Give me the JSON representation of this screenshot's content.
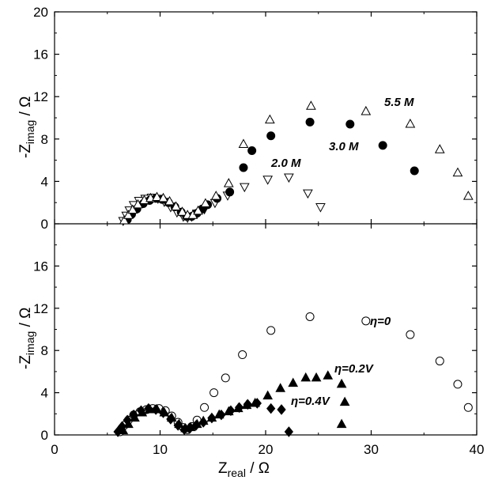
{
  "chart_data": [
    {
      "type": "scatter",
      "panel": "top",
      "ylabel": {
        "main": "-Z",
        "sub": "imag",
        "unit": " / Ω"
      },
      "xlim": [
        0,
        40
      ],
      "ylim": [
        0,
        20
      ],
      "yticks": [
        "0",
        "4",
        "8",
        "12",
        "16",
        "20"
      ],
      "series": [
        {
          "name": "2.0 M",
          "marker": "triangle-down-open",
          "x": [
            6.5,
            6.8,
            7.1,
            7.5,
            8.0,
            8.6,
            9.2,
            9.8,
            10.4,
            11.0,
            11.6,
            12.2,
            12.6,
            13.0,
            13.5,
            14.2,
            15.2,
            16.4,
            18.0,
            20.2,
            22.2,
            24.0,
            25.2
          ],
          "y": [
            0.3,
            0.8,
            1.3,
            1.8,
            2.2,
            2.4,
            2.5,
            2.4,
            2.1,
            1.6,
            1.1,
            0.7,
            0.6,
            0.7,
            1.0,
            1.4,
            2.0,
            2.7,
            3.5,
            4.2,
            4.4,
            2.9,
            1.6
          ]
        },
        {
          "name": "3.0 M",
          "marker": "circle-filled",
          "x": [
            6.9,
            7.3,
            7.8,
            8.4,
            9.0,
            9.6,
            10.2,
            10.8,
            11.4,
            12.0,
            12.5,
            13.0,
            13.5,
            14.0,
            14.5,
            15.4,
            16.6,
            17.9,
            18.7,
            20.5,
            24.2,
            28.0,
            31.1,
            34.1
          ],
          "y": [
            0.4,
            0.9,
            1.4,
            1.9,
            2.2,
            2.4,
            2.3,
            2.0,
            1.6,
            1.1,
            0.7,
            0.7,
            1.0,
            1.4,
            1.8,
            2.4,
            3.0,
            5.3,
            6.9,
            8.3,
            9.6,
            9.4,
            7.4,
            5.0
          ]
        },
        {
          "name": "5.5 M",
          "marker": "triangle-up-open",
          "x": [
            6.6,
            7.0,
            7.4,
            7.9,
            8.5,
            9.1,
            9.7,
            10.3,
            10.9,
            11.5,
            12.1,
            12.6,
            13.1,
            13.6,
            14.3,
            15.3,
            16.5,
            17.9,
            20.4,
            24.3,
            29.5,
            33.7,
            36.5,
            38.2,
            39.2
          ],
          "y": [
            0.3,
            0.8,
            1.3,
            1.8,
            2.2,
            2.4,
            2.5,
            2.4,
            2.1,
            1.6,
            1.1,
            0.8,
            0.8,
            1.2,
            1.9,
            2.6,
            3.8,
            7.5,
            9.8,
            11.1,
            10.6,
            9.4,
            7.0,
            4.8,
            2.6
          ]
        }
      ],
      "annotations": [
        "5.5 M",
        "3.0 M",
        "2.0 M"
      ]
    },
    {
      "type": "scatter",
      "panel": "bottom",
      "xlabel": {
        "main": "Z",
        "sub": "real",
        "unit": " / Ω"
      },
      "ylabel": {
        "main": "-Z",
        "sub": "imag",
        "unit": " / Ω"
      },
      "xlim": [
        0,
        40
      ],
      "ylim": [
        0,
        20
      ],
      "xticks": [
        "0",
        "10",
        "20",
        "30",
        "40"
      ],
      "yticks": [
        "0",
        "4",
        "8",
        "12",
        "16"
      ],
      "series": [
        {
          "name": "η=0",
          "marker": "circle-open",
          "x": [
            6.2,
            6.6,
            7.0,
            7.5,
            8.1,
            8.7,
            9.3,
            9.9,
            10.5,
            11.1,
            11.7,
            12.2,
            12.6,
            13.0,
            13.5,
            14.2,
            15.1,
            16.2,
            17.8,
            20.5,
            24.2,
            29.5,
            33.7,
            36.5,
            38.2,
            39.2
          ],
          "y": [
            0.3,
            0.9,
            1.4,
            1.9,
            2.2,
            2.4,
            2.5,
            2.5,
            2.3,
            1.8,
            1.2,
            0.7,
            0.5,
            0.8,
            1.4,
            2.6,
            4.0,
            5.4,
            7.6,
            9.9,
            11.2,
            10.8,
            9.5,
            7.0,
            4.8,
            2.6
          ]
        },
        {
          "name": "η=0.2V",
          "marker": "triangle-up-filled",
          "x": [
            6.5,
            7.0,
            7.6,
            8.3,
            9.0,
            9.7,
            10.4,
            11.1,
            11.8,
            12.4,
            12.9,
            13.5,
            14.1,
            14.9,
            15.6,
            16.5,
            17.4,
            18.2,
            19.0,
            20.2,
            21.4,
            22.6,
            23.8,
            24.8,
            25.9,
            27.2,
            27.5
          ],
          "y": [
            0.4,
            1.0,
            1.6,
            2.1,
            2.4,
            2.4,
            2.1,
            1.6,
            1.0,
            0.6,
            0.7,
            1.0,
            1.3,
            1.6,
            1.9,
            2.2,
            2.5,
            2.8,
            3.0,
            3.7,
            4.4,
            4.9,
            5.4,
            5.4,
            5.6,
            4.8,
            3.1
          ]
        },
        {
          "name": "η=0.4V",
          "marker": "diamond-filled",
          "x": [
            6.0,
            6.4,
            6.9,
            7.5,
            8.2,
            8.9,
            9.6,
            10.3,
            11.0,
            11.7,
            12.3,
            12.8,
            13.4,
            14.1,
            14.9,
            15.8,
            16.7,
            17.5,
            18.3,
            19.2,
            20.5,
            21.5,
            22.2
          ],
          "y": [
            0.3,
            0.8,
            1.4,
            1.9,
            2.3,
            2.5,
            2.4,
            2.1,
            1.5,
            0.9,
            0.5,
            0.6,
            0.9,
            1.2,
            1.6,
            1.9,
            2.3,
            2.6,
            2.9,
            3.0,
            2.5,
            2.4,
            0.3
          ]
        }
      ],
      "annotations": [
        "η=0",
        "η=0.2V",
        "η=0.4V"
      ],
      "extra_filled_triangle": {
        "x": 27.2,
        "y": 1.0
      }
    }
  ]
}
